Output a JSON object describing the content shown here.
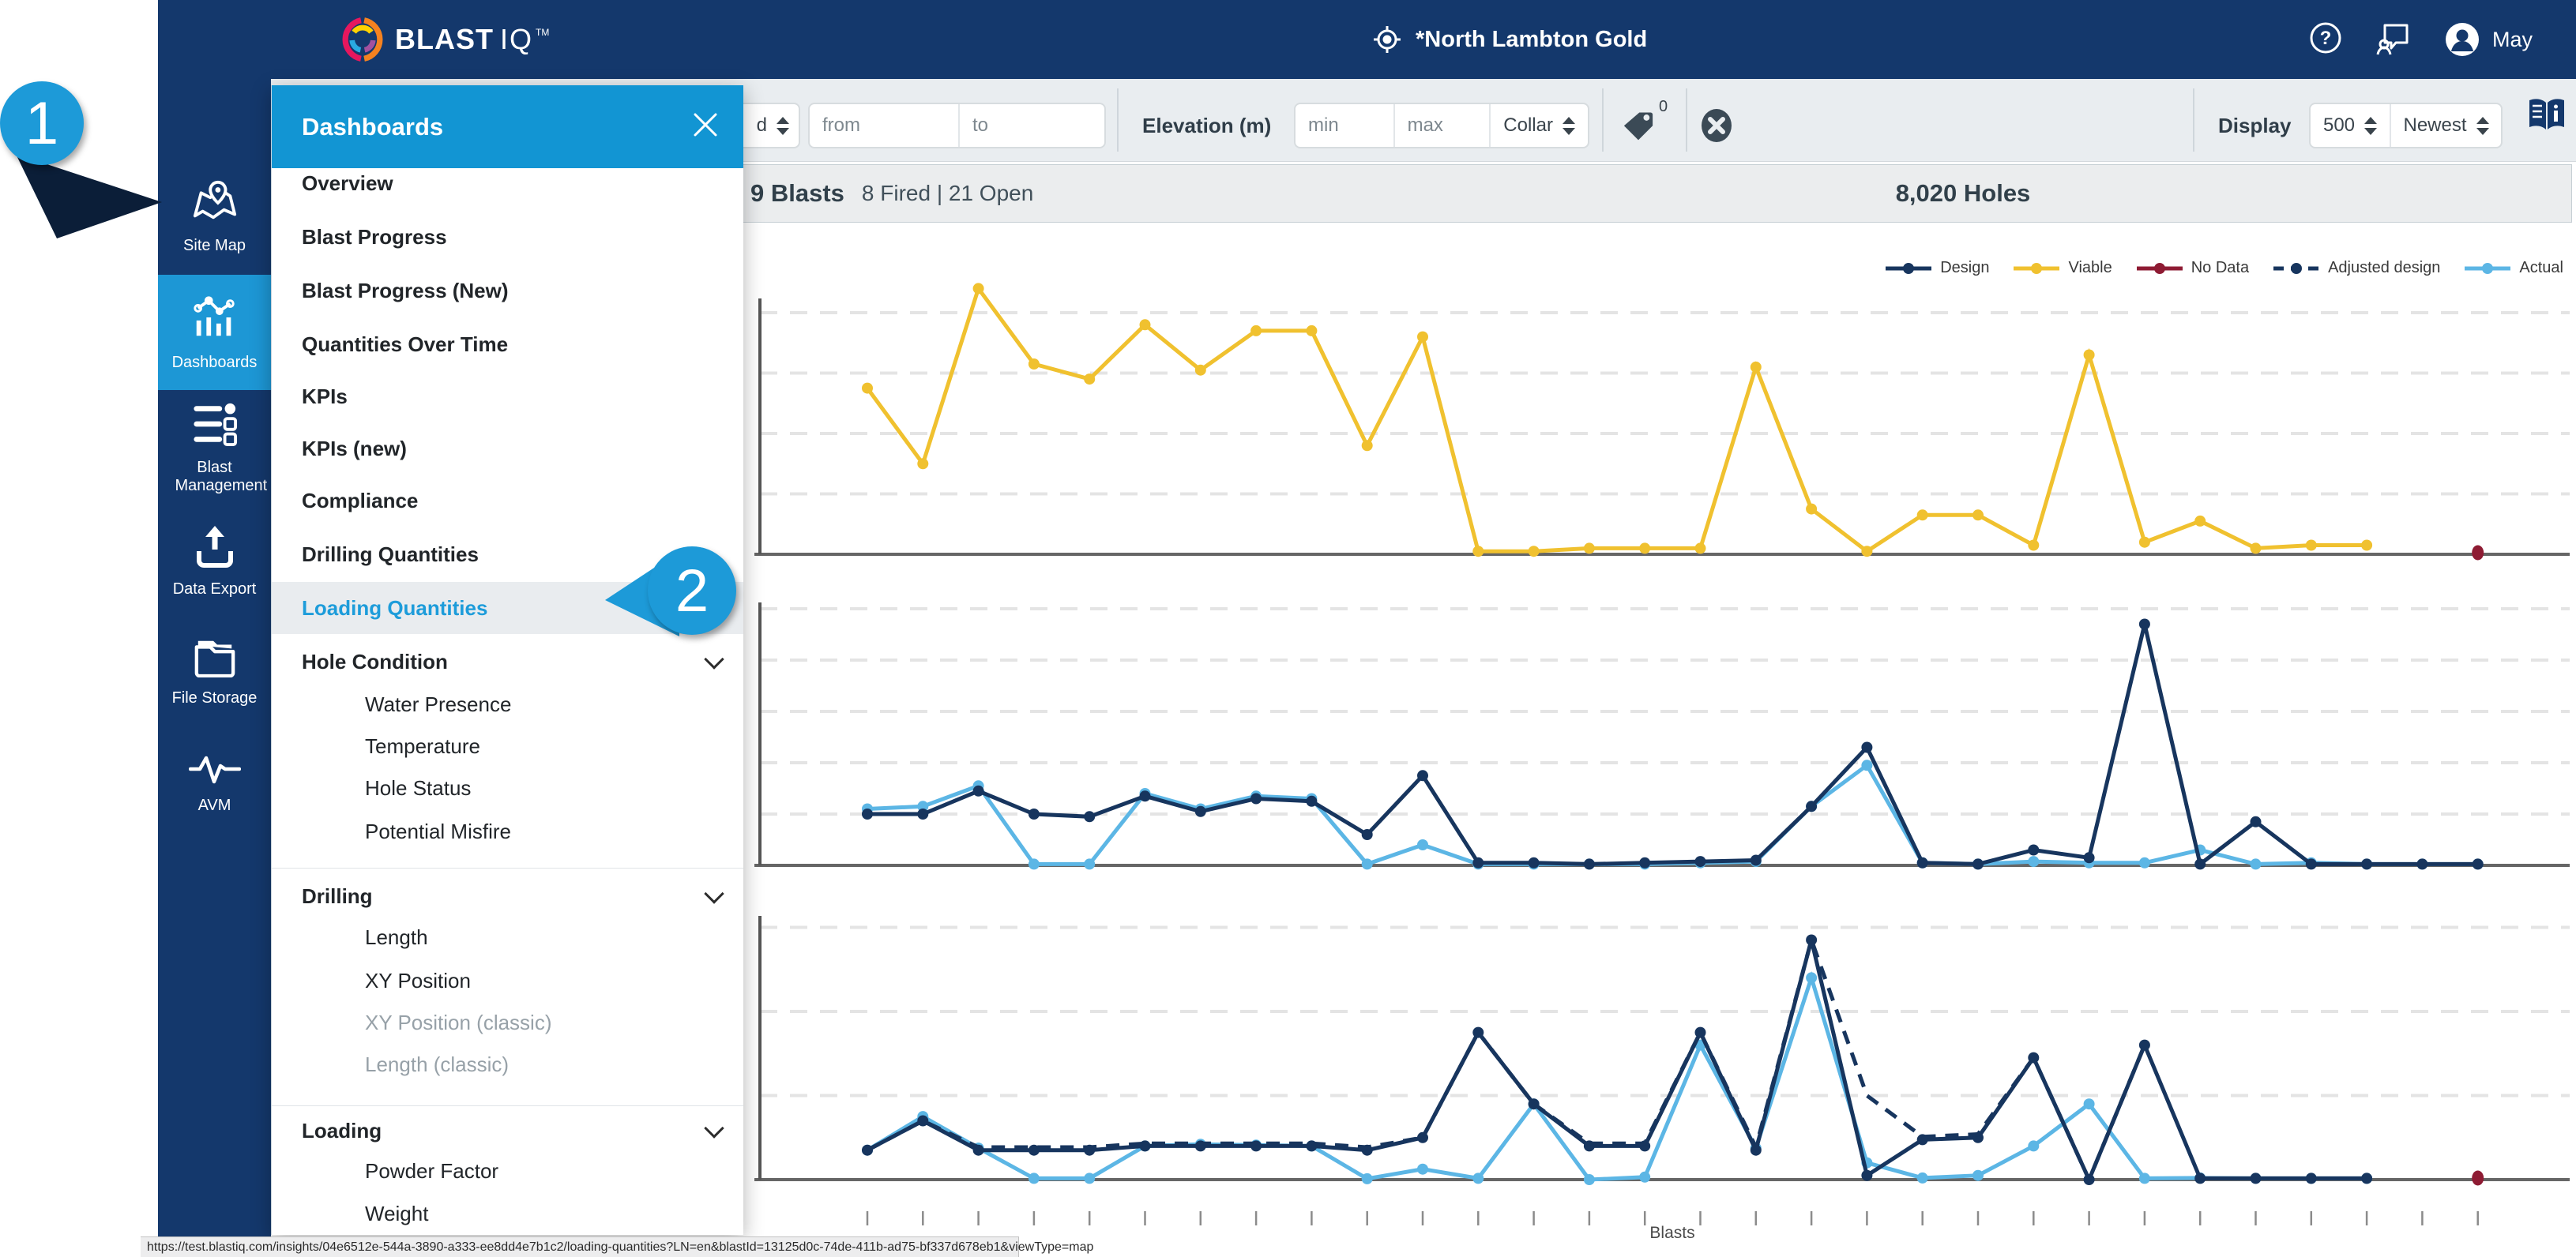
{
  "header": {
    "brand": "BLAST",
    "brand2": "IQ",
    "brand_tm": "TM",
    "site_name": "*North Lambton Gold",
    "user_name": "May"
  },
  "sidebar": {
    "items": [
      {
        "label": "Site Map",
        "icon": "site-map",
        "active": false
      },
      {
        "label": "Dashboards",
        "icon": "dashboards",
        "active": true
      },
      {
        "label": "Blast Management",
        "icon": "blast-management",
        "active": false
      },
      {
        "label": "Data Export",
        "icon": "data-export",
        "active": false
      },
      {
        "label": "File Storage",
        "icon": "file-storage",
        "active": false
      },
      {
        "label": "AVM",
        "icon": "avm",
        "active": false
      }
    ]
  },
  "menu": {
    "title": "Dashboards",
    "items": [
      {
        "label": "Overview",
        "level": 0
      },
      {
        "label": "Blast Progress",
        "level": 0
      },
      {
        "label": "Blast Progress (New)",
        "level": 0
      },
      {
        "label": "Quantities Over Time",
        "level": 0
      },
      {
        "label": "KPIs",
        "level": 0
      },
      {
        "label": "KPIs (new)",
        "level": 0
      },
      {
        "label": "Compliance",
        "level": 0
      },
      {
        "label": "Drilling Quantities",
        "level": 0
      },
      {
        "label": "Loading Quantities",
        "level": 0,
        "selected": true
      },
      {
        "label": "Hole Condition",
        "level": 0,
        "expandable": true
      },
      {
        "label": "Water Presence",
        "level": 1
      },
      {
        "label": "Temperature",
        "level": 1
      },
      {
        "label": "Hole Status",
        "level": 1
      },
      {
        "label": "Potential Misfire",
        "level": 1
      },
      {
        "divider": true
      },
      {
        "label": "Drilling",
        "level": 0,
        "expandable": true
      },
      {
        "label": "Length",
        "level": 1
      },
      {
        "label": "XY Position",
        "level": 1
      },
      {
        "label": "XY Position (classic)",
        "level": 1,
        "disabled": true
      },
      {
        "label": "Length (classic)",
        "level": 1,
        "disabled": true
      },
      {
        "divider": true
      },
      {
        "label": "Loading",
        "level": 0,
        "expandable": true
      },
      {
        "label": "Powder Factor",
        "level": 1
      },
      {
        "label": "Weight",
        "level": 1
      }
    ]
  },
  "toolbar": {
    "partial_select": "d",
    "from_placeholder": "from",
    "to_placeholder": "to",
    "elevation_label": "Elevation (m)",
    "min_placeholder": "min",
    "max_placeholder": "max",
    "collar_select": "Collar",
    "tag_count": "0",
    "display_label": "Display",
    "display_count": "500",
    "sort_select": "Newest"
  },
  "stats": {
    "blasts_value": "9 Blasts",
    "blasts_detail": "8 Fired | 21 Open",
    "holes_value": "8,020 Holes"
  },
  "callouts": {
    "one": "1",
    "two": "2"
  },
  "statusbar": {
    "url": "https://test.blastiq.com/insights/04e6512e-544a-3890-a333-ee8dd4e7b1c2/loading-quantities?LN=en&blastId=13125d0c-74de-411b-ad75-bf337d678eb1&viewType=map"
  },
  "chart_data": {
    "type": "line",
    "xlabel": "Blasts",
    "n_points": 30,
    "grid": true,
    "legend_position": "top-right",
    "colors": {
      "design": "#17355e",
      "viable": "#f0c12f",
      "no_data": "#8e1b33",
      "actual": "#5cb6e5"
    },
    "legend": [
      {
        "label": "Design",
        "color": "#17355e",
        "style": "solid"
      },
      {
        "label": "Viable",
        "color": "#f0c12f",
        "style": "solid"
      },
      {
        "label": "No Data",
        "color": "#8e1b33",
        "style": "solid"
      },
      {
        "label": "Adjusted design",
        "color": "#17355e",
        "style": "dashed"
      },
      {
        "label": "Actual",
        "color": "#5cb6e5",
        "style": "solid"
      }
    ],
    "panels": [
      {
        "name": "viable-panel",
        "ylim": [
          0,
          90
        ],
        "gridlines": [
          20,
          40,
          60,
          80
        ],
        "series": [
          {
            "name": "Viable",
            "color": "#f0c12f",
            "style": "solid",
            "values": [
              55,
              30,
              88,
              63,
              58,
              76,
              61,
              74,
              74,
              36,
              72,
              1,
              1,
              2,
              2,
              2,
              62,
              15,
              1,
              13,
              13,
              3,
              66,
              4,
              11,
              2,
              3,
              3,
              null,
              null
            ]
          }
        ],
        "no_data_point": {
          "x_index": 29,
          "value": 0
        }
      },
      {
        "name": "design-actual-panel",
        "ylim": [
          0,
          105
        ],
        "gridlines": [
          20,
          40,
          60,
          80,
          100
        ],
        "series": [
          {
            "name": "Actual",
            "color": "#5cb6e5",
            "style": "solid",
            "values": [
              22,
              23,
              31,
              0.5,
              0.5,
              28,
              22,
              27,
              26,
              0.5,
              8,
              0.5,
              0.5,
              0.5,
              0.5,
              1,
              1.5,
              23,
              39,
              1,
              0.5,
              1.5,
              1,
              1,
              6,
              0.5,
              1,
              0.5,
              0.5,
              0.5
            ]
          },
          {
            "name": "Design",
            "color": "#17355e",
            "style": "solid",
            "values": [
              20,
              20,
              29,
              20,
              19,
              27,
              21,
              26,
              25,
              12,
              35,
              1,
              1,
              0.5,
              1,
              1.5,
              2,
              23,
              46,
              1,
              0.5,
              6,
              3,
              94,
              0.5,
              17,
              0.5,
              0.5,
              0.5,
              0.5
            ]
          }
        ]
      },
      {
        "name": "design-actual-adjusted-panel",
        "ylim": [
          0,
          64
        ],
        "gridlines": [
          20,
          40,
          60
        ],
        "series": [
          {
            "name": "Actual",
            "color": "#5cb6e5",
            "style": "solid",
            "values": [
              7,
              15,
              7.5,
              0.3,
              0.3,
              8,
              8.4,
              8.2,
              8,
              0.2,
              2.5,
              0.3,
              18,
              0,
              0.6,
              32,
              7.5,
              48,
              4,
              0.4,
              1,
              8,
              18,
              0.3,
              0.4,
              0.3,
              0.3,
              0.3,
              null,
              null
            ]
          },
          {
            "name": "Design",
            "color": "#17355e",
            "style": "solid",
            "values": [
              7,
              14,
              7,
              7,
              7,
              8,
              8,
              8,
              8,
              7,
              10,
              35,
              18,
              8,
              8,
              35,
              7,
              57,
              1,
              9.5,
              10,
              29,
              0,
              32,
              0.3,
              0.3,
              0.3,
              0.3,
              null,
              null
            ]
          },
          {
            "name": "Adjusted design",
            "color": "#17355e",
            "style": "dashed",
            "values": [
              7,
              14,
              7.7,
              7.7,
              7.7,
              8.6,
              8.6,
              8.6,
              8.6,
              7.7,
              10,
              35,
              18,
              8.6,
              8.6,
              35,
              7.7,
              57,
              20,
              10.2,
              10.8,
              29,
              0,
              32,
              null,
              null,
              null,
              null,
              null,
              null
            ]
          }
        ],
        "no_data_point": {
          "x_index": 29,
          "value": 0
        }
      }
    ]
  }
}
